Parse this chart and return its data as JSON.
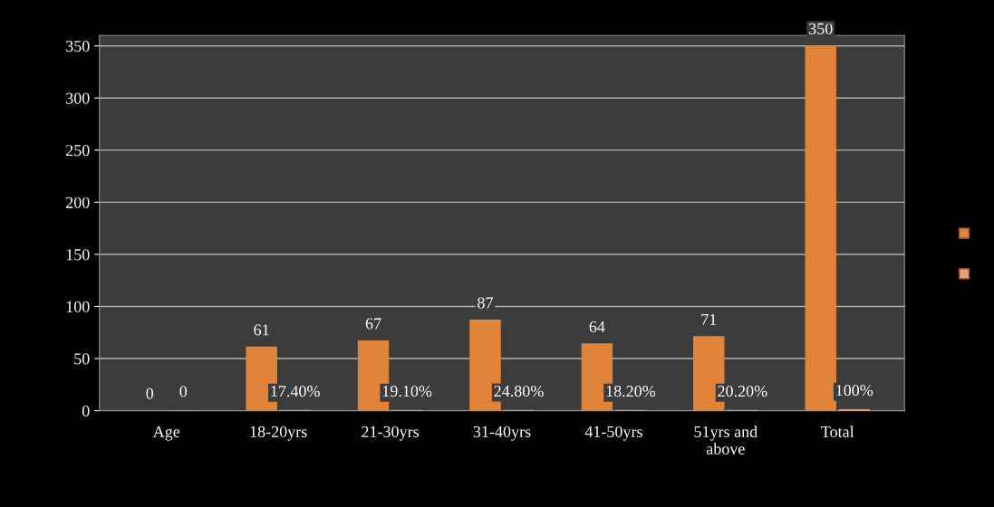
{
  "chart_data": {
    "type": "bar",
    "categories": [
      "Age",
      "18-20yrs",
      "21-30yrs",
      "31-40yrs",
      "41-50yrs",
      "51yrs and\nabove",
      "Total"
    ],
    "series": [
      {
        "color": "#e0843a",
        "values": [
          0,
          61,
          67,
          87,
          64,
          71,
          350
        ],
        "value_labels": [
          "0",
          "61",
          "67",
          "87",
          "64",
          "71",
          "350"
        ]
      },
      {
        "color": "#e8a07c",
        "values": [
          0,
          0.174,
          0.191,
          0.248,
          0.182,
          0.202,
          1
        ],
        "value_labels": [
          "0",
          "17.40%",
          "19.10%",
          "24.80%",
          "18.20%",
          "20.20%",
          "100%"
        ]
      }
    ],
    "ylim": [
      0,
      360
    ],
    "yticks": [
      0,
      50,
      100,
      150,
      200,
      250,
      300,
      350
    ],
    "grid": "y"
  }
}
